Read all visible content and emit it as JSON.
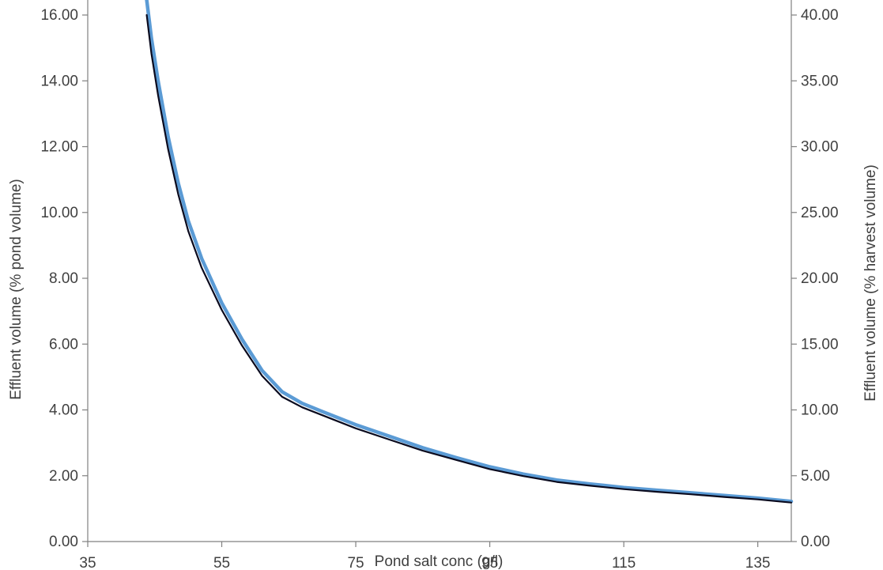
{
  "chart_data": {
    "type": "line",
    "title": "",
    "xlabel": "Pond salt conc (g/l)",
    "ylabel": "Effluent volume (% pond volume)",
    "y2label": "Effluent volume (% harvest volume)",
    "xlim": [
      35,
      140
    ],
    "ylim": [
      0,
      16.5
    ],
    "y2lim": [
      0,
      40
    ],
    "xticks": [
      "35",
      "55",
      "75",
      "95",
      "115",
      "135"
    ],
    "yticks": [
      "0.00",
      "2.00",
      "4.00",
      "6.00",
      "8.00",
      "10.00",
      "12.00",
      "14.00",
      "16.00"
    ],
    "y2ticks": [
      "0.00",
      "5.00",
      "10.00",
      "15.00",
      "20.00",
      "25.00",
      "30.00",
      "35.00",
      "40.00"
    ],
    "grid": false,
    "colors": {
      "primary_series": "#5b9bd5",
      "secondary_series": "#0a0a1e",
      "axis": "#808080",
      "text": "#404040"
    },
    "series": [
      {
        "axis": "left",
        "x": [
          43.8,
          44.5,
          45.5,
          47,
          48.5,
          50,
          52,
          55,
          58,
          61,
          64,
          67,
          70,
          75,
          80,
          85,
          90,
          95,
          100,
          105,
          110,
          115,
          120,
          125,
          130,
          135,
          140
        ],
        "y": [
          16.5,
          15.3,
          14.0,
          12.3,
          10.9,
          9.75,
          8.6,
          7.25,
          6.15,
          5.2,
          4.55,
          4.2,
          3.95,
          3.55,
          3.2,
          2.85,
          2.55,
          2.27,
          2.05,
          1.87,
          1.75,
          1.64,
          1.56,
          1.48,
          1.4,
          1.32,
          1.22
        ]
      },
      {
        "axis": "right",
        "x": [
          43.8,
          44.5,
          45.5,
          47,
          48.5,
          50,
          52,
          55,
          58,
          61,
          64,
          67,
          70,
          75,
          80,
          85,
          90,
          95,
          100,
          105,
          110,
          115,
          120,
          125,
          130,
          135,
          140
        ],
        "y": [
          40.0,
          37.1,
          33.9,
          29.8,
          26.4,
          23.6,
          20.8,
          17.6,
          14.9,
          12.6,
          11.0,
          10.2,
          9.6,
          8.6,
          7.75,
          6.9,
          6.2,
          5.5,
          4.97,
          4.53,
          4.24,
          3.98,
          3.78,
          3.59,
          3.39,
          3.2,
          2.96
        ]
      }
    ]
  }
}
